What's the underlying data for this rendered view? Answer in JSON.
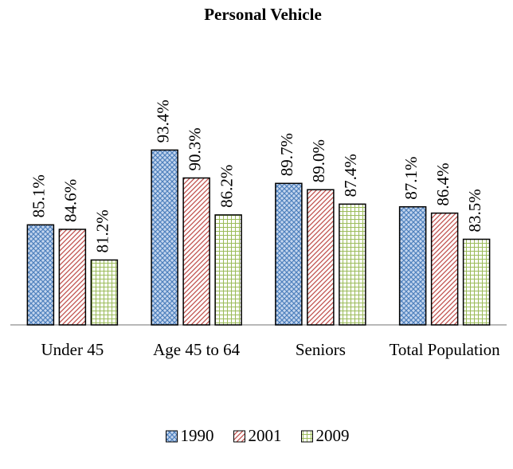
{
  "chart_data": {
    "type": "bar",
    "title": "Personal Vehicle",
    "categories": [
      "Under 45",
      "Age 45 to 64",
      "Seniors",
      "Total Population"
    ],
    "series": [
      {
        "name": "1990",
        "color": "#4f81bd",
        "pattern": "crosshatch",
        "values": [
          85.1,
          93.4,
          89.7,
          87.1
        ],
        "value_labels": [
          "85.1%",
          "93.4%",
          "89.7%",
          "87.1%"
        ]
      },
      {
        "name": "2001",
        "color": "#c0504d",
        "pattern": "diagonal",
        "values": [
          84.6,
          90.3,
          89.0,
          86.4
        ],
        "value_labels": [
          "84.6%",
          "90.3%",
          "89.0%",
          "86.4%"
        ]
      },
      {
        "name": "2009",
        "color": "#9bbb59",
        "pattern": "grid",
        "values": [
          81.2,
          86.2,
          87.4,
          83.5
        ],
        "value_labels": [
          "81.2%",
          "86.2%",
          "87.4%",
          "83.5%"
        ]
      }
    ],
    "ylim": [
      74,
      96
    ],
    "legend": "bottom"
  }
}
